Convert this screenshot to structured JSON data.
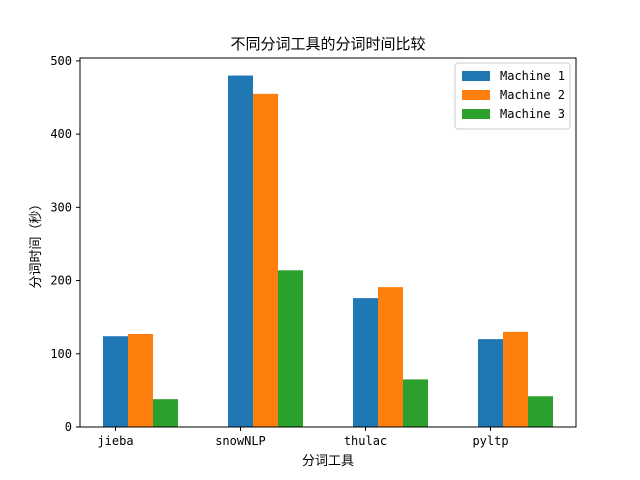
{
  "chart_data": {
    "type": "bar",
    "title": "不同分词工具的分词时间比较",
    "xlabel": "分词工具",
    "ylabel": "分词时间（秒）",
    "categories": [
      "jieba",
      "snowNLP",
      "thulac",
      "pyltp"
    ],
    "series": [
      {
        "name": "Machine 1",
        "color": "#1f77b4",
        "values": [
          124,
          480,
          176,
          120
        ]
      },
      {
        "name": "Machine 2",
        "color": "#ff7f0e",
        "values": [
          127,
          455,
          191,
          130
        ]
      },
      {
        "name": "Machine 3",
        "color": "#2ca02c",
        "values": [
          38,
          214,
          65,
          42
        ]
      }
    ],
    "ylim": [
      0,
      500
    ],
    "yticks": [
      0,
      100,
      200,
      300,
      400,
      500
    ],
    "grid": false,
    "legend_position": "top-right"
  }
}
